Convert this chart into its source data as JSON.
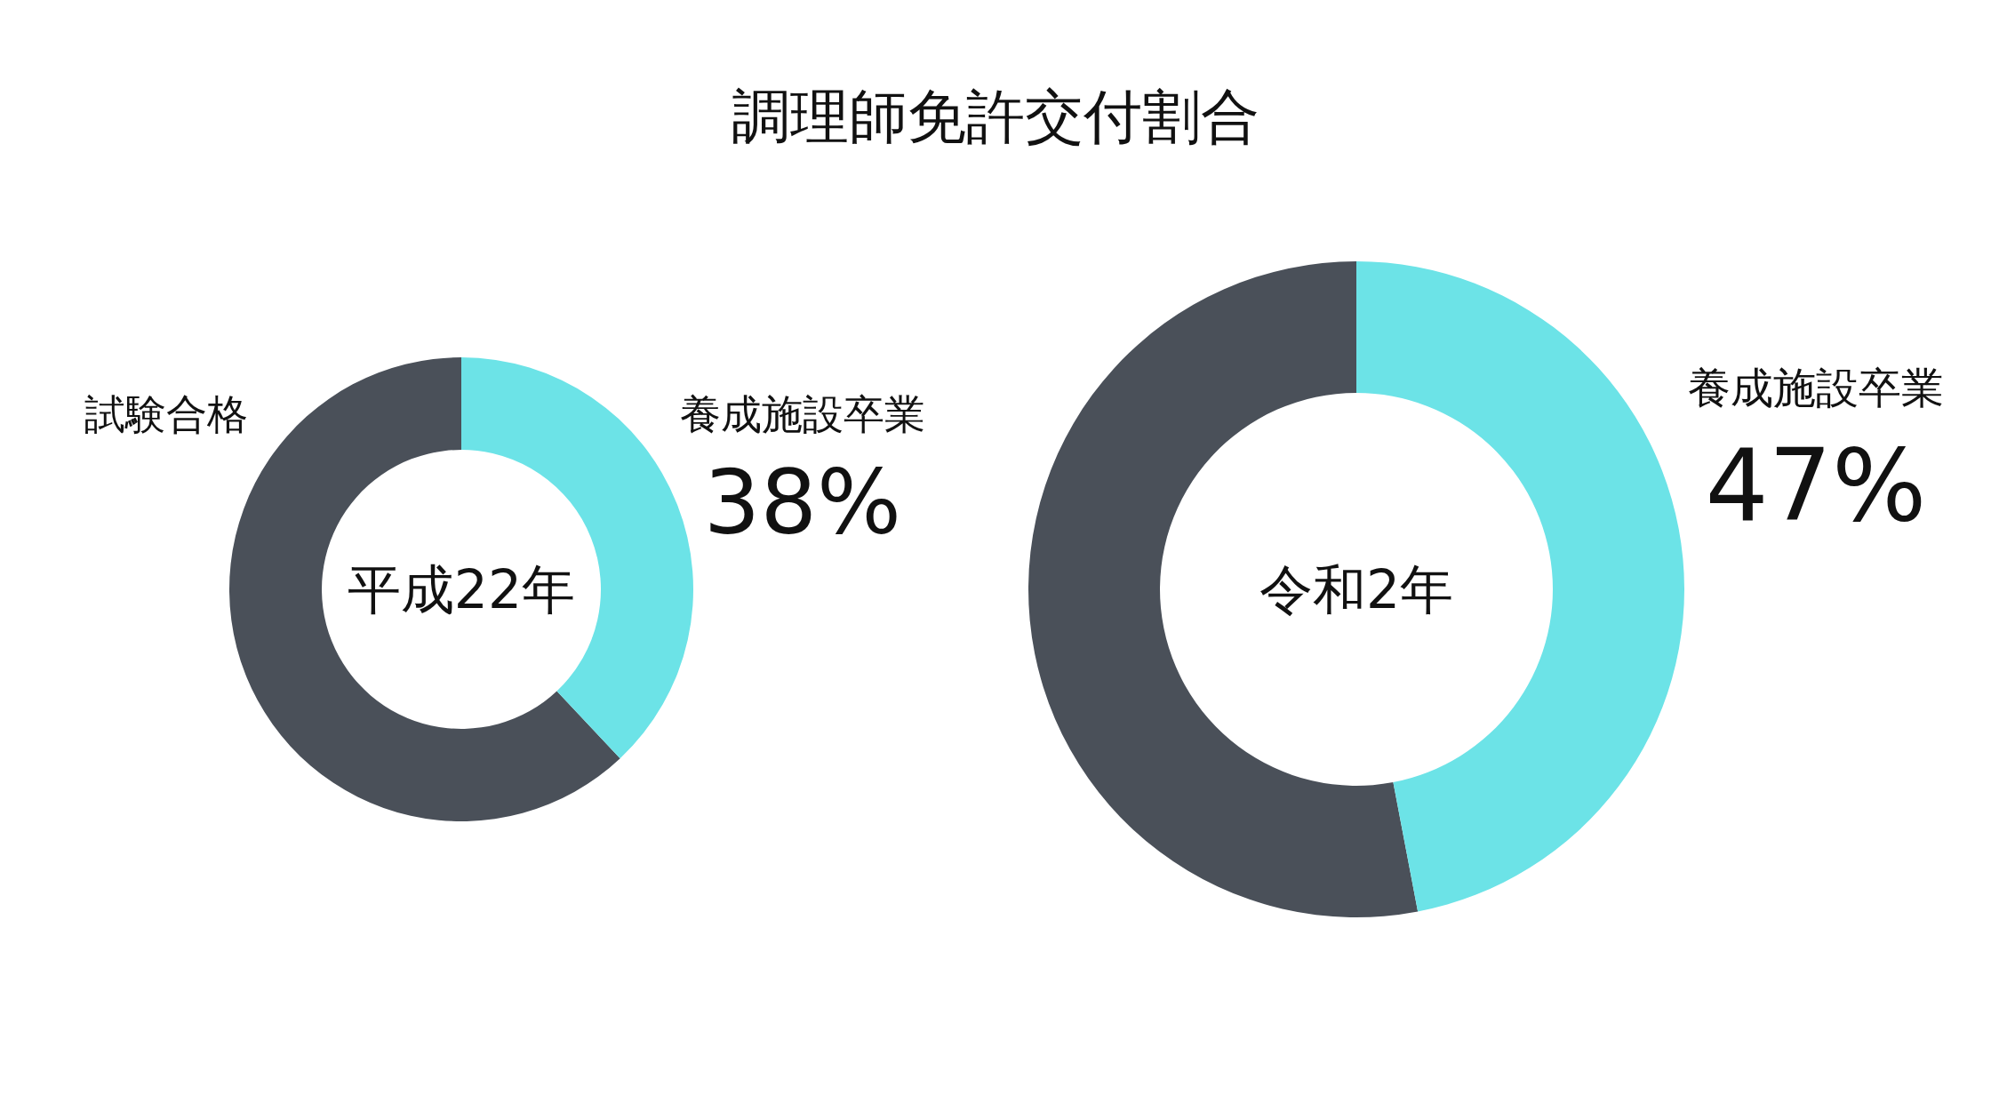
{
  "chart_data": [
    {
      "type": "donut",
      "title": "調理師免許交付割合",
      "subtitle": "平成22年",
      "categories": [
        "試験合格",
        "養成施設卒業"
      ],
      "values": [
        62,
        38
      ],
      "colors": [
        "#4a5059",
        "#6ce3e7"
      ],
      "value_labels": [
        null,
        "38%"
      ]
    },
    {
      "type": "donut",
      "subtitle": "令和2年",
      "categories": [
        null,
        "養成施設卒業"
      ],
      "values": [
        53,
        47
      ],
      "colors": [
        "#4a5059",
        "#6ce3e7"
      ],
      "value_labels": [
        null,
        "47%"
      ]
    }
  ]
}
